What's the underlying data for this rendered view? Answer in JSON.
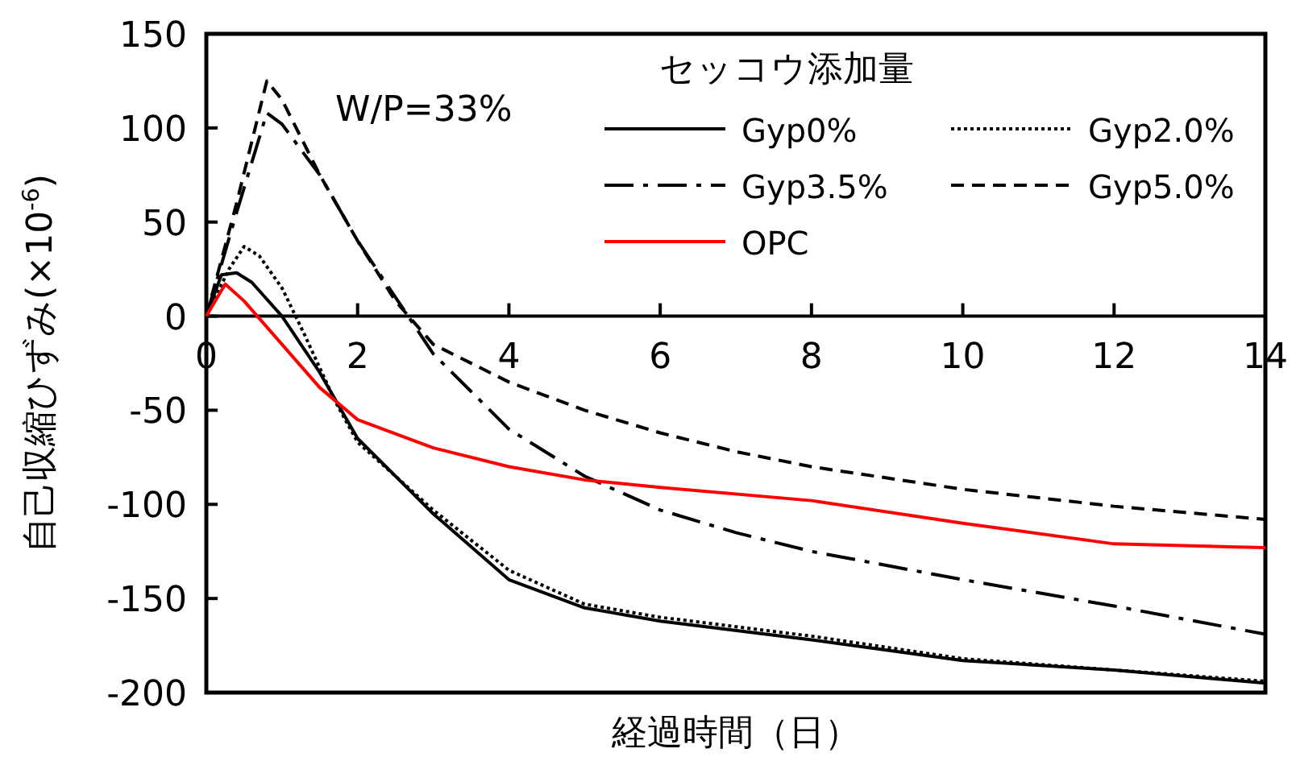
{
  "chart_data": {
    "type": "line",
    "xlabel": "経過時間（日）",
    "ylabel": "自己収縮ひずみ(×10$^{-6}$)",
    "legend_title": "セッコウ添加量",
    "annotations": [
      "W/P=33%"
    ],
    "xlim": [
      0,
      14
    ],
    "xticks": [
      0,
      2,
      4,
      6,
      8,
      10,
      12,
      14
    ],
    "ylim": [
      -200,
      150
    ],
    "yticks": [
      -200,
      -150,
      -100,
      -50,
      0,
      50,
      100,
      150
    ],
    "grid": false,
    "legend": "top right",
    "marker": "none",
    "series": [
      {
        "name": "Gyp0%",
        "color": "#000000",
        "line_style": "solid",
        "x": [
          0,
          0.2,
          0.4,
          0.6,
          1,
          1.5,
          2,
          3,
          4,
          5,
          6,
          8,
          10,
          12,
          14
        ],
        "values": [
          0,
          22,
          23,
          18,
          0,
          -30,
          -65,
          -105,
          -140,
          -155,
          -162,
          -172,
          -183,
          -188,
          -195
        ]
      },
      {
        "name": "Gyp2.0%",
        "color": "#000000",
        "line_style": "dotted",
        "x": [
          0,
          0.3,
          0.5,
          0.7,
          1,
          1.3,
          1.7,
          2,
          3,
          4,
          5,
          6,
          8,
          10,
          12,
          14
        ],
        "values": [
          0,
          25,
          37,
          32,
          15,
          -10,
          -45,
          -67,
          -103,
          -135,
          -153,
          -160,
          -170,
          -182,
          -188,
          -194
        ]
      },
      {
        "name": "Gyp3.5%",
        "color": "#000000",
        "line_style": "dashdot",
        "x": [
          0,
          0.4,
          0.8,
          1,
          1.5,
          2,
          2.5,
          3,
          4,
          5,
          6,
          7,
          8,
          10,
          12,
          14
        ],
        "values": [
          0,
          55,
          108,
          102,
          75,
          40,
          10,
          -20,
          -60,
          -85,
          -103,
          -115,
          -125,
          -140,
          -154,
          -169
        ]
      },
      {
        "name": "Gyp5.0%",
        "color": "#000000",
        "line_style": "dashed",
        "x": [
          0,
          0.4,
          0.8,
          1,
          1.5,
          2,
          2.5,
          3,
          4,
          5,
          6,
          7,
          8,
          10,
          12,
          14
        ],
        "values": [
          0,
          60,
          125,
          115,
          75,
          40,
          8,
          -15,
          -35,
          -50,
          -62,
          -72,
          -80,
          -92,
          -101,
          -108
        ]
      },
      {
        "name": "OPC",
        "color": "#ff0000",
        "line_style": "solid",
        "x": [
          0,
          0.25,
          0.5,
          1,
          1.5,
          2,
          3,
          4,
          5,
          6,
          8,
          10,
          12,
          14
        ],
        "values": [
          0,
          17,
          8,
          -15,
          -38,
          -55,
          -70,
          -80,
          -87,
          -91,
          -98,
          -110,
          -121,
          -123
        ]
      }
    ]
  }
}
